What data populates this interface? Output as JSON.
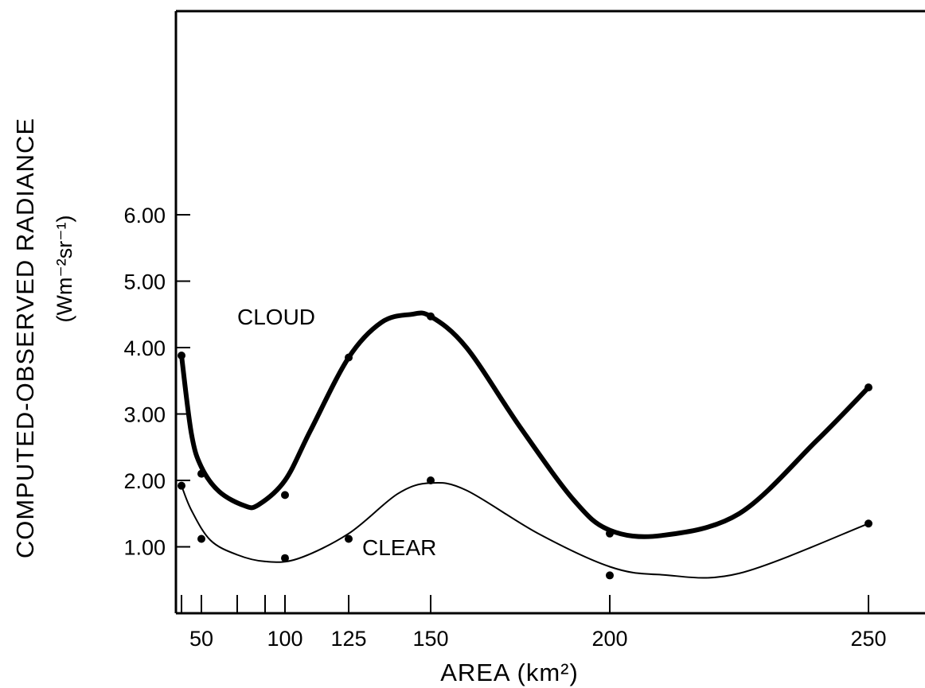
{
  "chart_data": {
    "type": "line",
    "title": "",
    "xlabel": "AREA (km²)",
    "ylabel": "COMPUTED-OBSERVED RADIANCE",
    "ylabel_units": "(Wm⁻²sr⁻¹)",
    "x_tick_labels": [
      "50",
      "100",
      "125",
      "150",
      "200",
      "250"
    ],
    "x_ticks_unlabeled": [
      40,
      70,
      90
    ],
    "x_ticks_labeled": [
      50,
      100,
      125,
      150,
      200,
      250
    ],
    "y_tick_labels": [
      "1.00",
      "2.00",
      "3.00",
      "4.00",
      "5.00",
      "6.00"
    ],
    "y_ticks": [
      1,
      2,
      3,
      4,
      5,
      6
    ],
    "grid": false,
    "series": [
      {
        "name": "CLOUD",
        "style": "thick",
        "points": [
          [
            40,
            3.88
          ],
          [
            50,
            2.1
          ],
          [
            100,
            1.78
          ],
          [
            125,
            3.85
          ],
          [
            150,
            4.47
          ],
          [
            200,
            1.2
          ],
          [
            250,
            3.4
          ]
        ],
        "curve": [
          [
            40,
            3.88
          ],
          [
            45,
            2.7
          ],
          [
            50,
            2.2
          ],
          [
            60,
            1.83
          ],
          [
            75,
            1.62
          ],
          [
            85,
            1.63
          ],
          [
            100,
            2.0
          ],
          [
            110,
            2.75
          ],
          [
            125,
            3.85
          ],
          [
            135,
            4.38
          ],
          [
            144,
            4.5
          ],
          [
            150,
            4.47
          ],
          [
            160,
            4.0
          ],
          [
            175,
            2.8
          ],
          [
            190,
            1.7
          ],
          [
            200,
            1.25
          ],
          [
            210,
            1.17
          ],
          [
            225,
            1.5
          ],
          [
            240,
            2.6
          ],
          [
            250,
            3.4
          ]
        ]
      },
      {
        "name": "CLEAR",
        "style": "thin",
        "points": [
          [
            40,
            1.92
          ],
          [
            50,
            1.12
          ],
          [
            100,
            0.83
          ],
          [
            125,
            1.12
          ],
          [
            150,
            2.0
          ],
          [
            200,
            0.57
          ],
          [
            250,
            1.35
          ]
        ],
        "curve": [
          [
            40,
            1.92
          ],
          [
            45,
            1.55
          ],
          [
            55,
            1.1
          ],
          [
            70,
            0.88
          ],
          [
            90,
            0.78
          ],
          [
            105,
            0.82
          ],
          [
            125,
            1.2
          ],
          [
            140,
            1.8
          ],
          [
            150,
            1.96
          ],
          [
            160,
            1.85
          ],
          [
            180,
            1.2
          ],
          [
            200,
            0.7
          ],
          [
            210,
            0.58
          ],
          [
            225,
            0.6
          ],
          [
            250,
            1.35
          ]
        ]
      }
    ]
  }
}
